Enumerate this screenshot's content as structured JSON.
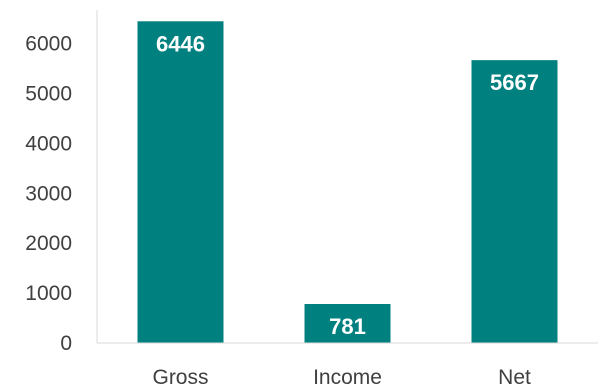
{
  "chart_data": {
    "type": "bar",
    "categories": [
      "Gross",
      "Income",
      "Net"
    ],
    "values": [
      6446,
      781,
      5667
    ],
    "data_labels": [
      "6446",
      "781",
      "5667"
    ],
    "ylim": [
      0,
      6500
    ],
    "yticks": [
      0,
      1000,
      2000,
      3000,
      4000,
      5000,
      6000
    ],
    "ytick_labels": [
      "0",
      "1000",
      "2000",
      "3000",
      "4000",
      "5000",
      "6000"
    ],
    "title": "",
    "xlabel": "",
    "ylabel": "",
    "grid": false,
    "legend": "none",
    "colors": {
      "bar": "#00807f",
      "axis": "#d9d9d9",
      "text": "#404040",
      "data_label": "#ffffff"
    }
  }
}
